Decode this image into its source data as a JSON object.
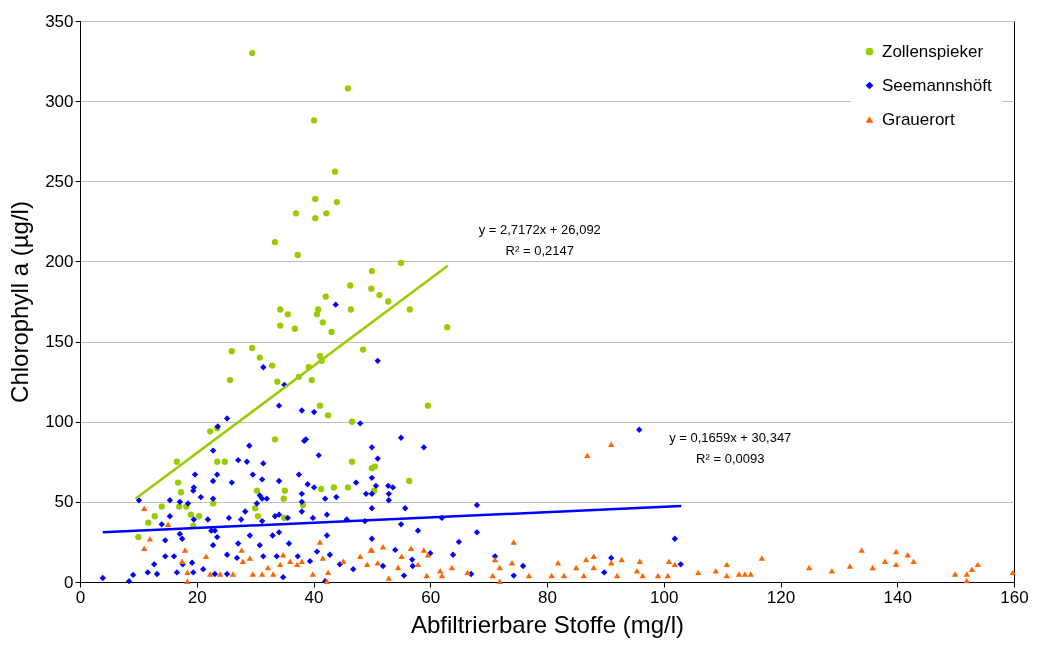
{
  "chart_data": {
    "type": "scatter",
    "xlabel": "Abfiltrierbare Stoffe (mg/l)",
    "ylabel": "Chlorophyll a (µg/l)",
    "xlim": [
      0,
      160
    ],
    "ylim": [
      0,
      350
    ],
    "xticks": [
      0,
      20,
      40,
      60,
      80,
      100,
      120,
      140,
      160
    ],
    "yticks": [
      0,
      50,
      100,
      150,
      200,
      250,
      300,
      350
    ],
    "grid": "y",
    "legend": "top right",
    "series": [
      {
        "name": "Zollenspieker",
        "color": "#99cc00",
        "marker": "circle",
        "x": [
          29.5,
          45.9,
          40.1,
          43.7,
          40.3,
          44,
          37,
          40.3,
          42.2,
          33.4,
          37.3,
          55,
          50,
          51.3,
          46.3,
          42.1,
          52.8,
          40.8,
          56.5,
          49.9,
          34.3,
          35.6,
          40.6,
          41.6,
          36.8,
          46.4,
          34.3,
          43.1,
          62.9,
          26,
          29.5,
          48.5,
          30.8,
          41.1,
          41.4,
          25.7,
          32.9,
          39.2,
          37.5,
          33.8,
          39.7,
          59.6,
          41.1,
          23.5,
          22.3,
          33.4,
          23.5,
          46.6,
          42.5,
          16.6,
          24.8,
          46.6,
          50,
          50.5,
          56.4,
          16.8,
          17.3,
          34.9,
          35.1,
          41.3,
          43.5,
          45.9,
          50.4,
          22.8,
          18.2,
          19,
          14,
          12.8,
          11.7,
          10,
          17,
          19.4,
          20.4,
          30.3,
          30,
          35,
          38.2,
          30.5
        ],
        "values": [
          330,
          308,
          288,
          256,
          239,
          237,
          230,
          227,
          230,
          212,
          204,
          199,
          194,
          179,
          185,
          178,
          175,
          170,
          170,
          183,
          170,
          167,
          167,
          162,
          158,
          170,
          160,
          156,
          159,
          144,
          146,
          145,
          140,
          141,
          138,
          126,
          135,
          134,
          128,
          125,
          126,
          110,
          110,
          96,
          94,
          89,
          75,
          100,
          104,
          75,
          75,
          75,
          71,
          72,
          63,
          62,
          56,
          52,
          57,
          58,
          59,
          59,
          57,
          49,
          47,
          42,
          47,
          41,
          37,
          28,
          47,
          35,
          41,
          57,
          46,
          40,
          48,
          41
        ]
      },
      {
        "name": "Seemannshöft",
        "color": "#0000ff",
        "marker": "diamond",
        "x": [
          43.8,
          51,
          31.4,
          35,
          34.1,
          38,
          40.1,
          25.2,
          23.6,
          48,
          38.7,
          38.4,
          29,
          22.8,
          40.9,
          50,
          51,
          27.1,
          28.6,
          31.4,
          19.7,
          23.5,
          29.6,
          37.5,
          50,
          26,
          22.8,
          31.2,
          34.1,
          39,
          40.1,
          47.3,
          50.7,
          19.5,
          19.4,
          38,
          30.8,
          31.2,
          32,
          20.7,
          22.8,
          15.4,
          17.1,
          18.5,
          10.1,
          30.3,
          38,
          42,
          49,
          50,
          43.9,
          50,
          28.3,
          38,
          42.3,
          15.4,
          19.5,
          21.9,
          25.5,
          27.6,
          31.2,
          33.4,
          34.1,
          35.6,
          39.9,
          45.7,
          48.8,
          14,
          22.5,
          23.1,
          17.1,
          23.5,
          17.5,
          14.6,
          27.1,
          22.8,
          30.8,
          29.1,
          33,
          34.1,
          35.8,
          42.3,
          50,
          14.6,
          16.1,
          25.2,
          26.9,
          31.4,
          33.7,
          37.3,
          40.6,
          42.8,
          12.7,
          17.6,
          19.2,
          39.4,
          11.6,
          13.2,
          16.6,
          19.4,
          21.1,
          23.1,
          25.2,
          44.5,
          46.8,
          3.9,
          8.4,
          9.1,
          34.8,
          42,
          55,
          58.9,
          52.8,
          53.6,
          52.9,
          52.9,
          55.7,
          55,
          57.9,
          62,
          68,
          68,
          64.9,
          63.9,
          54,
          56.9,
          57,
          60,
          71.1,
          75.9,
          74.3,
          67,
          55.5,
          51.9,
          91,
          89.8,
          95.8,
          101.9,
          102.9
        ],
        "values": [
          173,
          138,
          134,
          123,
          110,
          107,
          106,
          102,
          97,
          99,
          89,
          88,
          85,
          82,
          79,
          84,
          77,
          76,
          75,
          74,
          67,
          67,
          67,
          67,
          65,
          62,
          63,
          64,
          63,
          61,
          59,
          62,
          60,
          59,
          57,
          55,
          54,
          52,
          52,
          53,
          52,
          51,
          50,
          49,
          51,
          49,
          50,
          52,
          55,
          55,
          53,
          46,
          44,
          44,
          42,
          41,
          39,
          39,
          40,
          39,
          38,
          41,
          42,
          40,
          40,
          39,
          38,
          36,
          32,
          32,
          30,
          28,
          27,
          26,
          24,
          23,
          23,
          29,
          29,
          31,
          24,
          29,
          27,
          16,
          16,
          17,
          15,
          16,
          16,
          16,
          19,
          17,
          11,
          11,
          12,
          13,
          6,
          5,
          6,
          6,
          8,
          5,
          5,
          11,
          8,
          2.5,
          0.5,
          4.4,
          3,
          0.5,
          90,
          84,
          60,
          59,
          55,
          51,
          46,
          36,
          32,
          40,
          48,
          31,
          25,
          17,
          20,
          14,
          10,
          18,
          16,
          10,
          4,
          5,
          4,
          10,
          15,
          6,
          95,
          27,
          11
        ]
      },
      {
        "name": "Grauerort",
        "color": "#ff6600",
        "marker": "triangle",
        "x": [
          11,
          15.1,
          12,
          11,
          18,
          21.6,
          17.5,
          18.4,
          18.4,
          22.3,
          24,
          26.2,
          27.7,
          27.9,
          29.1,
          29.6,
          32.2,
          34.8,
          36,
          37.2,
          38,
          39.9,
          41.1,
          41.6,
          42.3,
          42.5,
          45.1,
          48,
          49.2,
          50,
          51,
          33.1,
          34.3,
          31.2,
          49.8,
          51.9,
          55.1,
          56.7,
          58.9,
          59.6,
          57.9,
          54.5,
          52.9,
          61.7,
          62,
          59.4,
          63.7,
          66.4,
          70.7,
          71.1,
          71.9,
          71.9,
          74,
          74.3,
          76.9,
          80.8,
          81.9,
          82.9,
          85,
          86.3,
          86.9,
          91,
          86.7,
          88,
          88,
          91,
          92,
          92.8,
          95.9,
          95.4,
          96.4,
          99,
          100.7,
          100.9,
          101.9,
          105.9,
          108.9,
          110.8,
          110.8,
          112.9,
          113.9,
          114.9,
          116.8,
          124.9,
          128.8,
          131.9,
          133.9,
          135.8,
          137.9,
          139.8,
          139.8,
          141.8,
          142.8,
          149.9,
          151.9,
          151.9,
          152.8,
          153.8,
          159.8
        ],
        "values": [
          46,
          36,
          27,
          21,
          20,
          16,
          13,
          6,
          0.5,
          5,
          5,
          5,
          20,
          13,
          15,
          5,
          9,
          17,
          13,
          11,
          13,
          5,
          25,
          15,
          0.5,
          6,
          13,
          16,
          11,
          20,
          12,
          5,
          11,
          5,
          20,
          22,
          16,
          21,
          20,
          17,
          11,
          9,
          2.5,
          7,
          4,
          4,
          9,
          6,
          4,
          14,
          9,
          0.5,
          12,
          25,
          4,
          4,
          12,
          4,
          9,
          4,
          79,
          86,
          14,
          16,
          9,
          12,
          4,
          14,
          13,
          7,
          4,
          4,
          4,
          13,
          11,
          6,
          7,
          11,
          4,
          5,
          5,
          5,
          15,
          9,
          7,
          10,
          20,
          9,
          13,
          19,
          11,
          17,
          13,
          5,
          5,
          1,
          8,
          11,
          6
        ]
      },
      {
        "type": "line",
        "color": "#99cc00",
        "x": [
          9.5,
          63
        ],
        "values": [
          51.9,
          197.3
        ]
      },
      {
        "type": "line",
        "color": "#0000ff",
        "x": [
          3.9,
          103
        ],
        "values": [
          31,
          47.4
        ]
      }
    ],
    "annotations": [
      "y = 2,7172x + 26,092",
      "R² = 0,2147",
      "y = 0,1659x + 30,347",
      "R² = 0,0093"
    ]
  }
}
